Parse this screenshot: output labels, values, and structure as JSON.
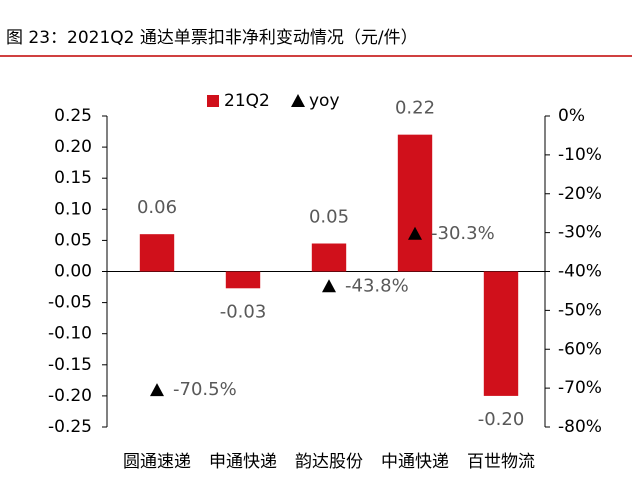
{
  "chart_data": {
    "type": "bar",
    "title": "图 23：2021Q2 通达单票扣非净利变动情况（元/件）",
    "categories": [
      "圆通速递",
      "申通快递",
      "韵达股份",
      "中通快递",
      "百世物流"
    ],
    "series": [
      {
        "name": "21Q2",
        "color": "#d0101b",
        "values": [
          0.06,
          -0.027,
          0.045,
          0.22,
          -0.2
        ],
        "value_labels": [
          "0.06",
          "-0.03",
          "0.05",
          "0.22",
          "-0.20"
        ]
      },
      {
        "name": "yoy",
        "color": "#000000",
        "axis": "y2",
        "marker": "triangle",
        "values": [
          -70.5,
          null,
          -43.8,
          -30.3,
          null
        ],
        "value_labels": [
          "-70.5%",
          null,
          "-43.8%",
          "-30.3%",
          null
        ]
      }
    ],
    "ylim": [
      -0.25,
      0.25
    ],
    "yticks": [
      0.25,
      {
        "value": 0.2,
        "label": "0.20"
      },
      0.15,
      {
        "value": 0.1,
        "label": "0.10"
      },
      0.05,
      {
        "value": 0,
        "label": "0.00"
      },
      -0.05,
      {
        "value": -0.1,
        "label": "-0.10"
      },
      -0.15,
      {
        "value": -0.2,
        "label": "-0.20"
      },
      -0.25
    ],
    "y2lim": [
      -80,
      0
    ],
    "y2ticks": [
      {
        "value": 0,
        "label": "0%"
      },
      {
        "value": -10,
        "label": "-10%"
      },
      {
        "value": -20,
        "label": "-20%"
      },
      {
        "value": -30,
        "label": "-30%"
      },
      {
        "value": -40,
        "label": "-40%"
      },
      {
        "value": -50,
        "label": "-50%"
      },
      {
        "value": -60,
        "label": "-60%"
      },
      {
        "value": -70,
        "label": "-70%"
      },
      {
        "value": -80,
        "label": "-80%"
      }
    ],
    "legend": "top"
  }
}
